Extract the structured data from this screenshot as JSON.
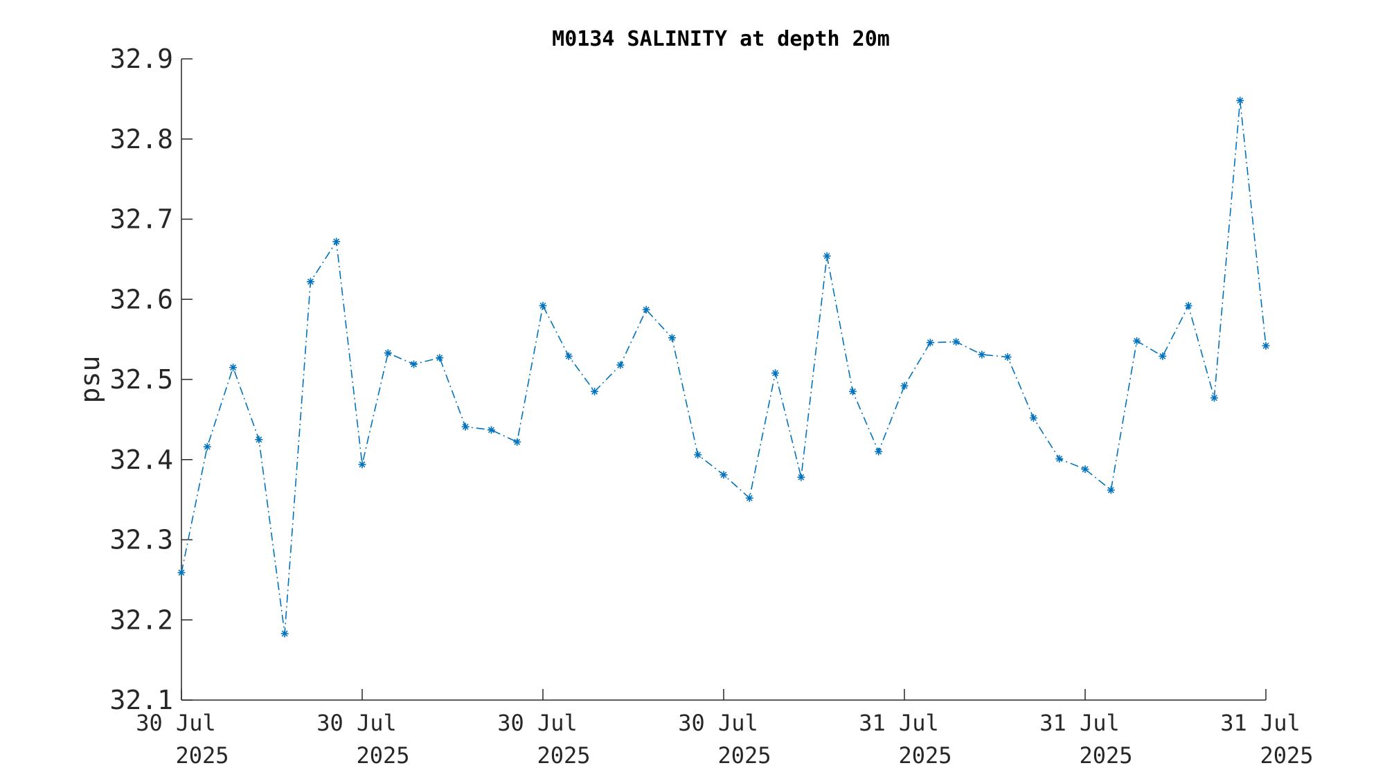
{
  "chart_data": {
    "type": "line",
    "title": "M0134 SALINITY at depth 20m",
    "ylabel": "psu",
    "xlabel": "",
    "ylim": [
      32.1,
      32.9
    ],
    "yticks": [
      "32.1",
      "32.2",
      "32.3",
      "32.4",
      "32.5",
      "32.6",
      "32.7",
      "32.8",
      "32.9"
    ],
    "xticks": [
      {
        "line1": "30 Jul",
        "line2": "2025"
      },
      {
        "line1": "30 Jul",
        "line2": "2025"
      },
      {
        "line1": "30 Jul",
        "line2": "2025"
      },
      {
        "line1": "30 Jul",
        "line2": "2025"
      },
      {
        "line1": "31 Jul",
        "line2": "2025"
      },
      {
        "line1": "31 Jul",
        "line2": "2025"
      },
      {
        "line1": "31 Jul",
        "line2": "2025"
      }
    ],
    "grid": false,
    "line_style": "dash-dot",
    "marker": "asterisk",
    "series_color": "#0072bd",
    "series": [
      {
        "values": [
          32.259,
          32.416,
          32.515,
          32.425,
          32.183,
          32.622,
          32.672,
          32.394,
          32.533,
          32.519,
          32.527,
          32.441,
          32.437,
          32.422,
          32.592,
          32.529,
          32.485,
          32.518,
          32.587,
          32.552,
          32.406,
          32.381,
          32.352,
          32.508,
          32.378,
          32.654,
          32.485,
          32.41,
          32.492,
          32.546,
          32.547,
          32.531,
          32.528,
          32.452,
          32.401,
          32.388,
          32.362,
          32.548,
          32.529,
          32.592,
          32.477,
          32.848,
          32.542
        ]
      }
    ]
  }
}
